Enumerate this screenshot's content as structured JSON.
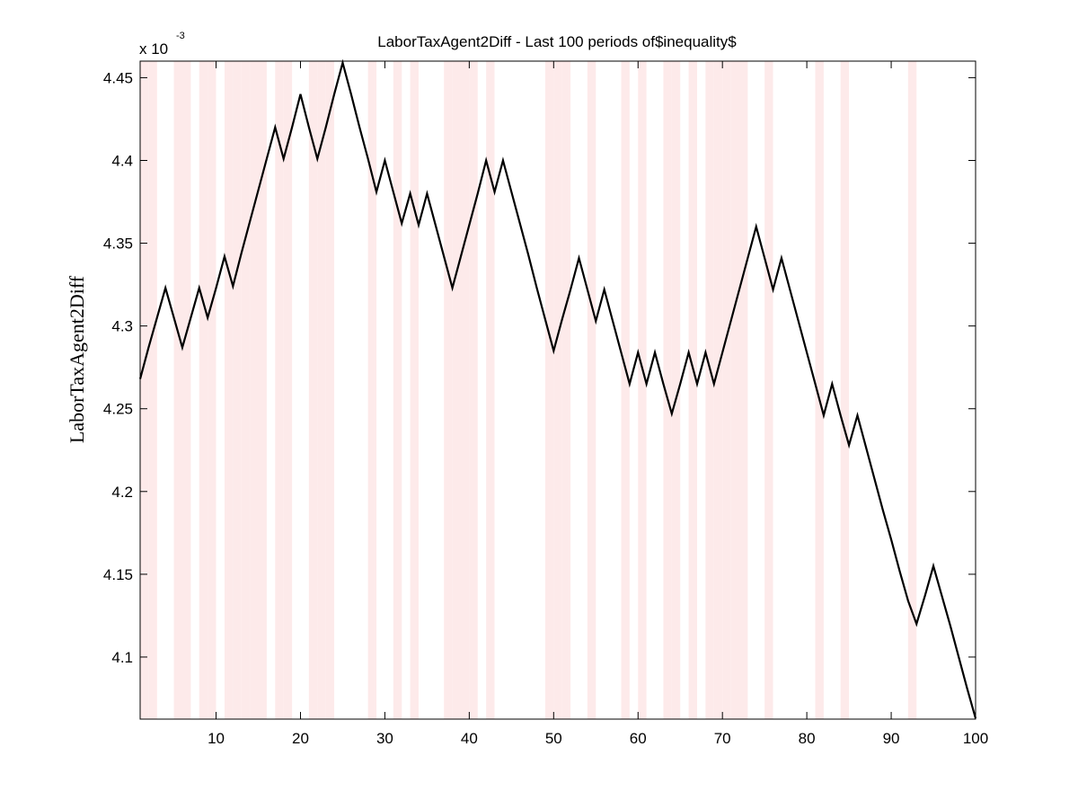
{
  "chart_data": {
    "type": "line",
    "title": "LaborTaxAgent2Diff - Last 100 periods of$inequality$",
    "xlabel": "",
    "ylabel": "LaborTaxAgent2Diff",
    "y_scale_label": "x 10",
    "y_scale_exponent": "-3",
    "xlim": [
      1,
      100
    ],
    "ylim": [
      4.0625,
      4.46
    ],
    "x_ticks": [
      10,
      20,
      30,
      40,
      50,
      60,
      70,
      80,
      90,
      100
    ],
    "y_ticks": [
      4.1,
      4.15,
      4.2,
      4.25,
      4.3,
      4.35,
      4.4,
      4.45
    ],
    "y_tick_labels": [
      "4.1",
      "4.15",
      "4.2",
      "4.25",
      "4.3",
      "4.35",
      "4.4",
      "4.45"
    ],
    "grid": false,
    "line_color": "#000000",
    "shade_color": "#fdeaea",
    "shaded_periods": [
      1,
      2,
      5,
      6,
      8,
      9,
      11,
      12,
      13,
      14,
      15,
      17,
      18,
      21,
      22,
      23,
      28,
      31,
      33,
      37,
      38,
      39,
      40,
      42,
      49,
      50,
      51,
      54,
      58,
      60,
      63,
      64,
      66,
      68,
      69,
      70,
      71,
      72,
      75,
      81,
      84,
      92
    ],
    "series": [
      {
        "values": [
          4.268,
          4.287,
          4.305,
          4.323,
          4.305,
          4.287,
          4.305,
          4.323,
          4.305,
          4.323,
          4.342,
          4.324,
          4.344,
          4.363,
          4.382,
          4.401,
          4.42,
          4.401,
          4.42,
          4.44,
          4.42,
          4.401,
          4.42,
          4.44,
          4.459,
          4.44,
          4.42,
          4.401,
          4.381,
          4.4,
          4.381,
          4.362,
          4.38,
          4.361,
          4.38,
          4.361,
          4.342,
          4.323,
          4.342,
          4.361,
          4.38,
          4.4,
          4.381,
          4.4,
          4.381,
          4.362,
          4.343,
          4.323,
          4.304,
          4.285,
          4.304,
          4.322,
          4.341,
          4.322,
          4.303,
          4.322,
          4.303,
          4.284,
          4.265,
          4.284,
          4.265,
          4.284,
          4.265,
          4.247,
          4.265,
          4.284,
          4.265,
          4.284,
          4.265,
          4.284,
          4.303,
          4.322,
          4.341,
          4.36,
          4.341,
          4.322,
          4.341,
          4.322,
          4.303,
          4.284,
          4.265,
          4.246,
          4.265,
          4.246,
          4.228,
          4.246,
          4.227,
          4.208,
          4.189,
          4.171,
          4.152,
          4.134,
          4.12,
          4.137,
          4.155,
          4.137,
          4.119,
          4.1,
          4.081,
          4.063
        ]
      }
    ]
  }
}
